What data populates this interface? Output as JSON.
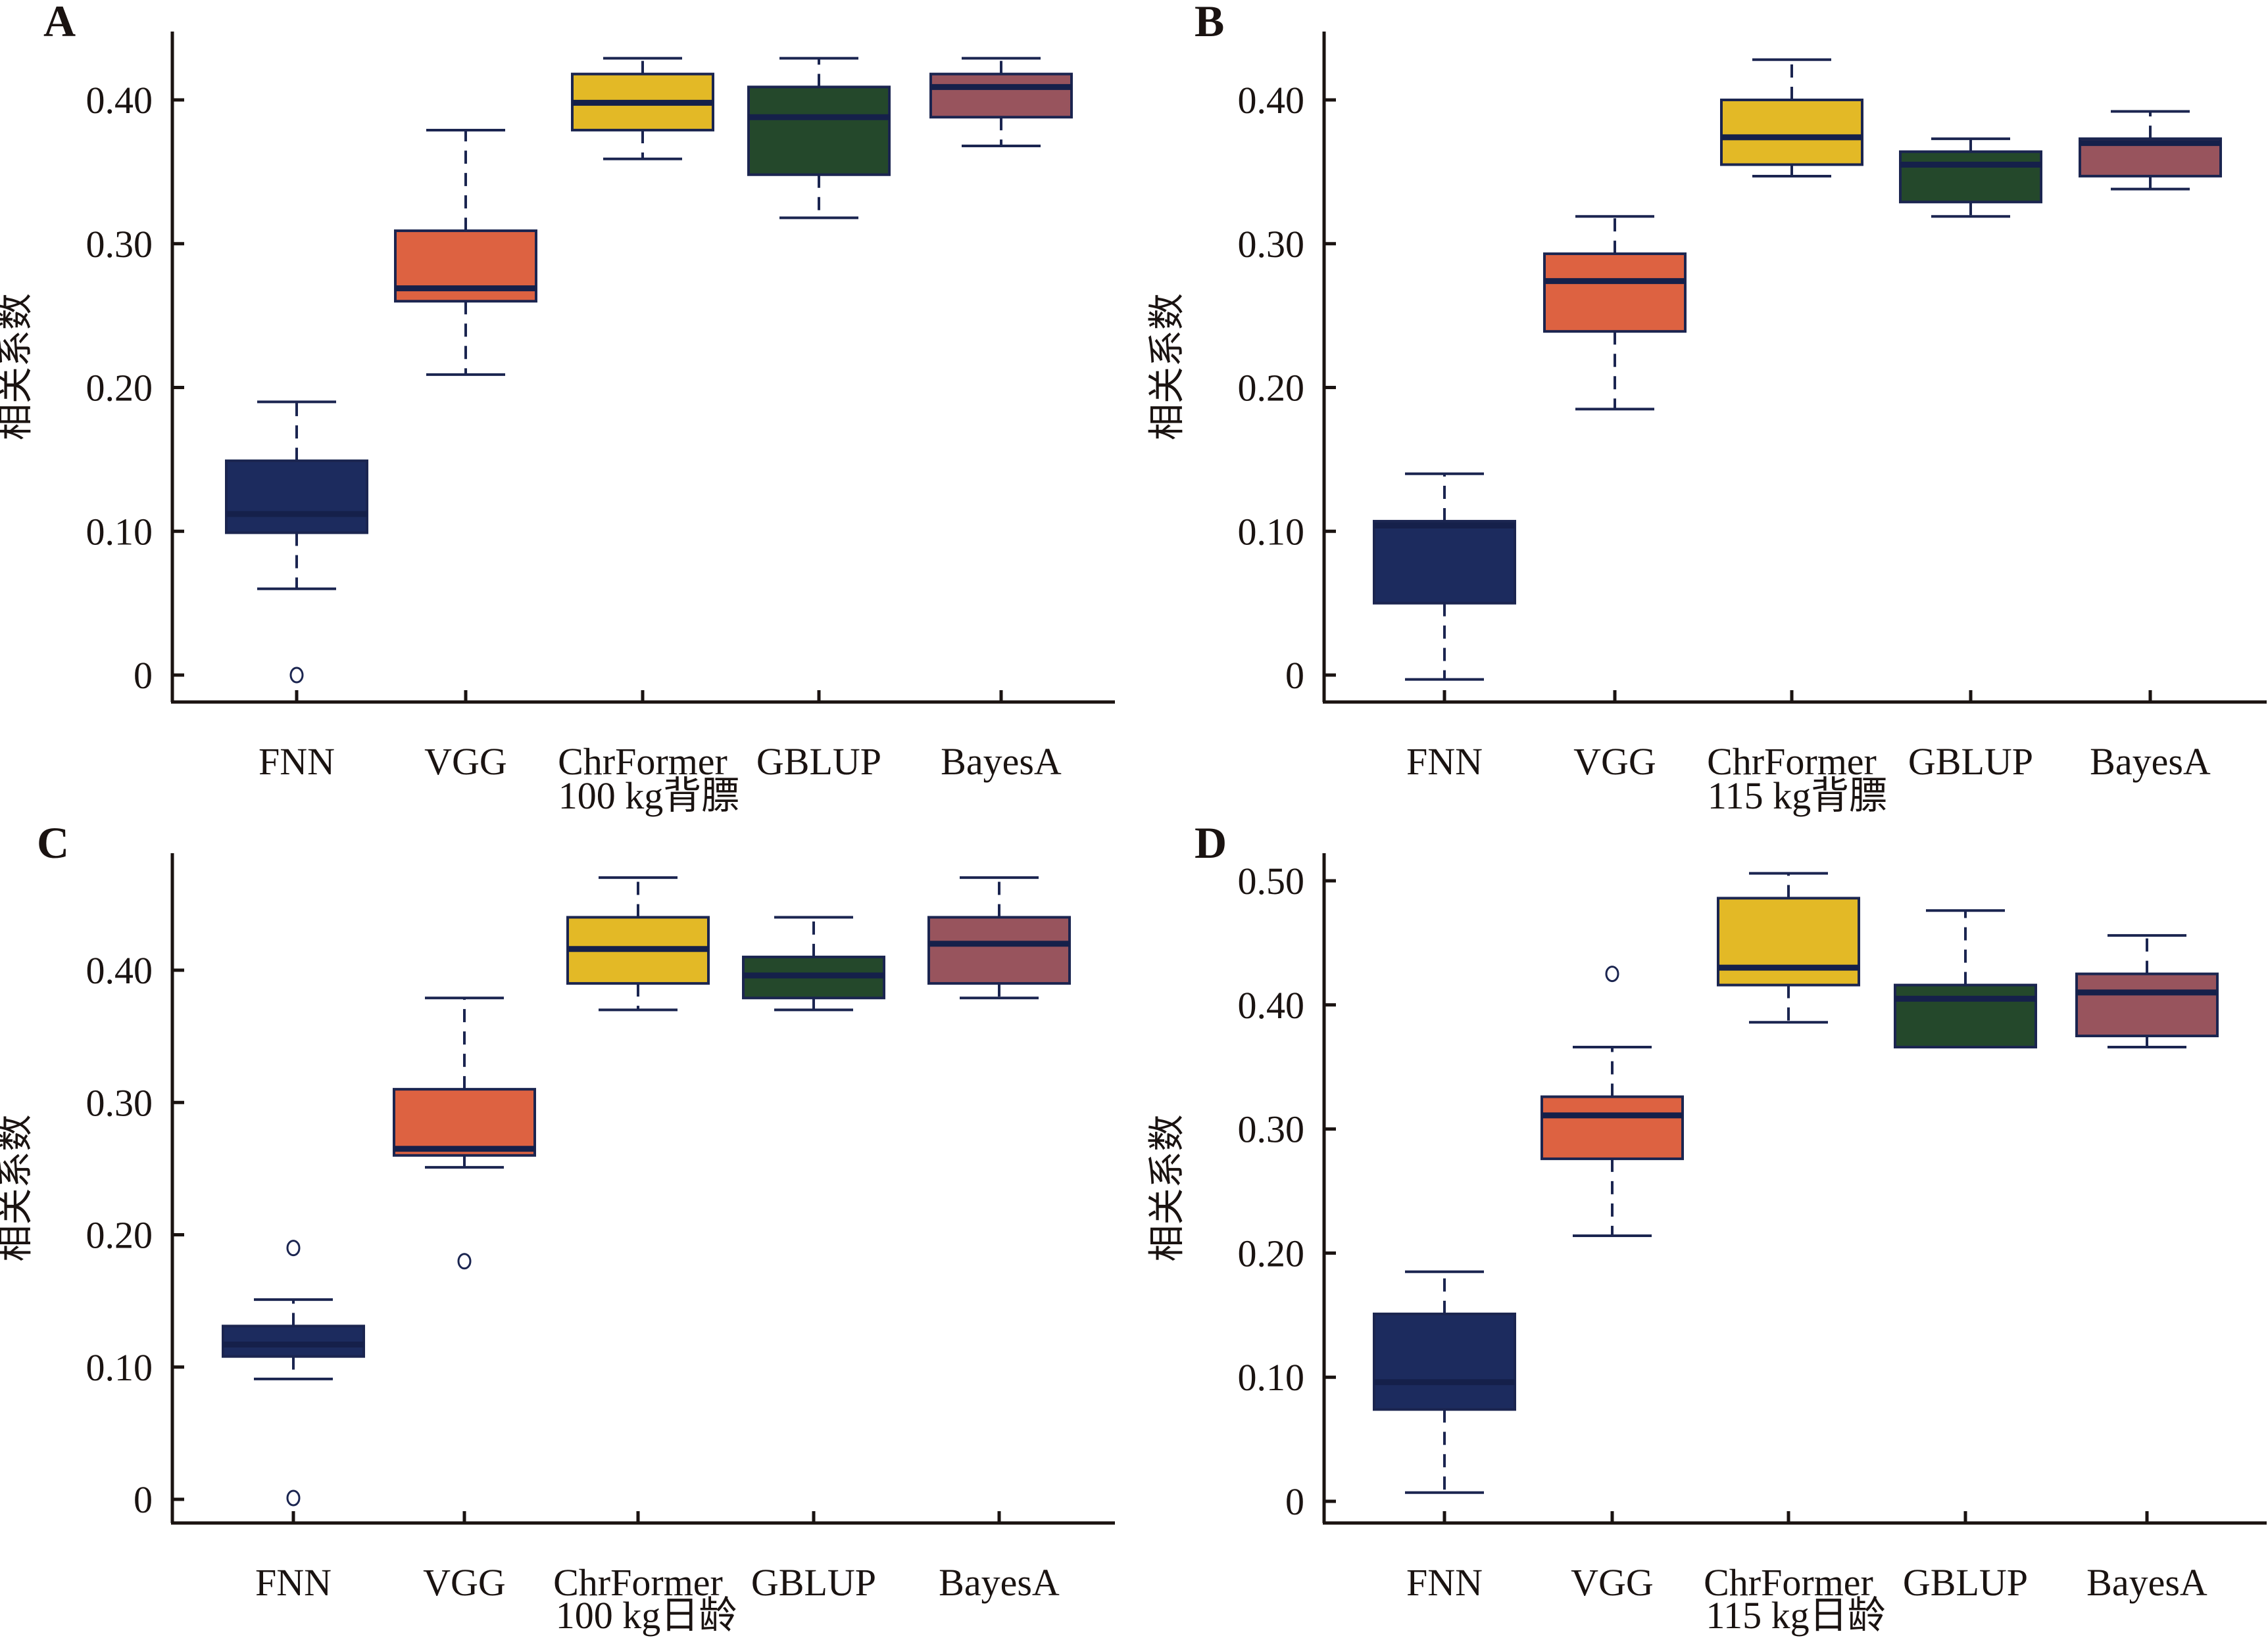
{
  "figure": {
    "box_edge_color": "#1b2550",
    "median_color": "#15204a",
    "axis_color": "#1a1311"
  },
  "chart_data": [
    {
      "type": "box",
      "panel": "A",
      "title": "",
      "xlabel": "100 kg背膘",
      "ylabel": "相关系数",
      "ylim": [
        -0.02,
        0.45
      ],
      "yticks": [
        0,
        0.1,
        0.2,
        0.3,
        0.4
      ],
      "ytick_labels": [
        "0",
        "0.10",
        "0.20",
        "0.30",
        "0.40"
      ],
      "categories": [
        "FNN",
        "VGG",
        "ChrFormer",
        "GBLUP",
        "BayesA"
      ],
      "colors": [
        "#1c2b5e",
        "#dd6241",
        "#e3b926",
        "#24482b",
        "#98545d"
      ],
      "boxes": [
        {
          "whisker_low": 0.06,
          "q1": 0.099,
          "median": 0.112,
          "q3": 0.149,
          "whisker_high": 0.19,
          "outliers": [
            0.0
          ]
        },
        {
          "whisker_low": 0.209,
          "q1": 0.26,
          "median": 0.269,
          "q3": 0.309,
          "whisker_high": 0.379,
          "outliers": []
        },
        {
          "whisker_low": 0.359,
          "q1": 0.379,
          "median": 0.398,
          "q3": 0.418,
          "whisker_high": 0.429,
          "outliers": []
        },
        {
          "whisker_low": 0.318,
          "q1": 0.348,
          "median": 0.388,
          "q3": 0.409,
          "whisker_high": 0.429,
          "outliers": []
        },
        {
          "whisker_low": 0.368,
          "q1": 0.388,
          "median": 0.409,
          "q3": 0.418,
          "whisker_high": 0.429,
          "outliers": []
        }
      ],
      "grid": false
    },
    {
      "type": "box",
      "panel": "B",
      "title": "",
      "xlabel": "115 kg背膘",
      "ylabel": "相关系数",
      "ylim": [
        -0.02,
        0.45
      ],
      "yticks": [
        0,
        0.1,
        0.2,
        0.3,
        0.4
      ],
      "ytick_labels": [
        "0",
        "0.10",
        "0.20",
        "0.30",
        "0.40"
      ],
      "categories": [
        "FNN",
        "VGG",
        "ChrFormer",
        "GBLUP",
        "BayesA"
      ],
      "colors": [
        "#1c2b5e",
        "#dd6241",
        "#e3b926",
        "#24482b",
        "#98545d"
      ],
      "boxes": [
        {
          "whisker_low": -0.003,
          "q1": 0.05,
          "median": 0.104,
          "q3": 0.107,
          "whisker_high": 0.14,
          "outliers": []
        },
        {
          "whisker_low": 0.185,
          "q1": 0.239,
          "median": 0.274,
          "q3": 0.293,
          "whisker_high": 0.319,
          "outliers": []
        },
        {
          "whisker_low": 0.347,
          "q1": 0.355,
          "median": 0.374,
          "q3": 0.4,
          "whisker_high": 0.428,
          "outliers": []
        },
        {
          "whisker_low": 0.319,
          "q1": 0.329,
          "median": 0.355,
          "q3": 0.364,
          "whisker_high": 0.373,
          "outliers": []
        },
        {
          "whisker_low": 0.338,
          "q1": 0.347,
          "median": 0.37,
          "q3": 0.373,
          "whisker_high": 0.392,
          "outliers": []
        }
      ],
      "grid": false
    },
    {
      "type": "box",
      "panel": "C",
      "title": "",
      "xlabel": "100 kg日龄",
      "ylabel": "相关系数",
      "ylim": [
        -0.015,
        0.49
      ],
      "yticks": [
        0,
        0.1,
        0.2,
        0.3,
        0.4
      ],
      "ytick_labels": [
        "0",
        "0.10",
        "0.20",
        "0.30",
        "0.40"
      ],
      "categories": [
        "FNN",
        "VGG",
        "ChrFormer",
        "GBLUP",
        "BayesA"
      ],
      "colors": [
        "#1c2b5e",
        "#dd6241",
        "#e3b926",
        "#24482b",
        "#98545d"
      ],
      "boxes": [
        {
          "whisker_low": 0.091,
          "q1": 0.108,
          "median": 0.117,
          "q3": 0.131,
          "whisker_high": 0.151,
          "outliers": [
            0.19,
            0.001
          ]
        },
        {
          "whisker_low": 0.251,
          "q1": 0.26,
          "median": 0.265,
          "q3": 0.31,
          "whisker_high": 0.379,
          "outliers": [
            0.18
          ]
        },
        {
          "whisker_low": 0.37,
          "q1": 0.39,
          "median": 0.416,
          "q3": 0.44,
          "whisker_high": 0.47,
          "outliers": []
        },
        {
          "whisker_low": 0.37,
          "q1": 0.379,
          "median": 0.396,
          "q3": 0.41,
          "whisker_high": 0.44,
          "outliers": []
        },
        {
          "whisker_low": 0.379,
          "q1": 0.39,
          "median": 0.42,
          "q3": 0.44,
          "whisker_high": 0.47,
          "outliers": []
        }
      ],
      "grid": false
    },
    {
      "type": "box",
      "panel": "D",
      "title": "",
      "xlabel": "115 kg日龄",
      "ylabel": "相关系数",
      "ylim": [
        -0.015,
        0.525
      ],
      "yticks": [
        0,
        0.1,
        0.2,
        0.3,
        0.4,
        0.5
      ],
      "ytick_labels": [
        "0",
        "0.10",
        "0.20",
        "0.30",
        "0.40",
        "0.50"
      ],
      "categories": [
        "FNN",
        "VGG",
        "ChrFormer",
        "GBLUP",
        "BayesA"
      ],
      "colors": [
        "#1c2b5e",
        "#dd6241",
        "#e3b926",
        "#24482b",
        "#98545d"
      ],
      "boxes": [
        {
          "whisker_low": 0.007,
          "q1": 0.074,
          "median": 0.096,
          "q3": 0.151,
          "whisker_high": 0.185,
          "outliers": []
        },
        {
          "whisker_low": 0.214,
          "q1": 0.276,
          "median": 0.311,
          "q3": 0.326,
          "whisker_high": 0.366,
          "outliers": [
            0.425
          ]
        },
        {
          "whisker_low": 0.386,
          "q1": 0.416,
          "median": 0.43,
          "q3": 0.486,
          "whisker_high": 0.506,
          "outliers": []
        },
        {
          "whisker_low": 0.366,
          "q1": 0.366,
          "median": 0.405,
          "q3": 0.416,
          "whisker_high": 0.476,
          "outliers": []
        },
        {
          "whisker_low": 0.366,
          "q1": 0.375,
          "median": 0.41,
          "q3": 0.425,
          "whisker_high": 0.456,
          "outliers": []
        }
      ],
      "grid": false
    }
  ]
}
